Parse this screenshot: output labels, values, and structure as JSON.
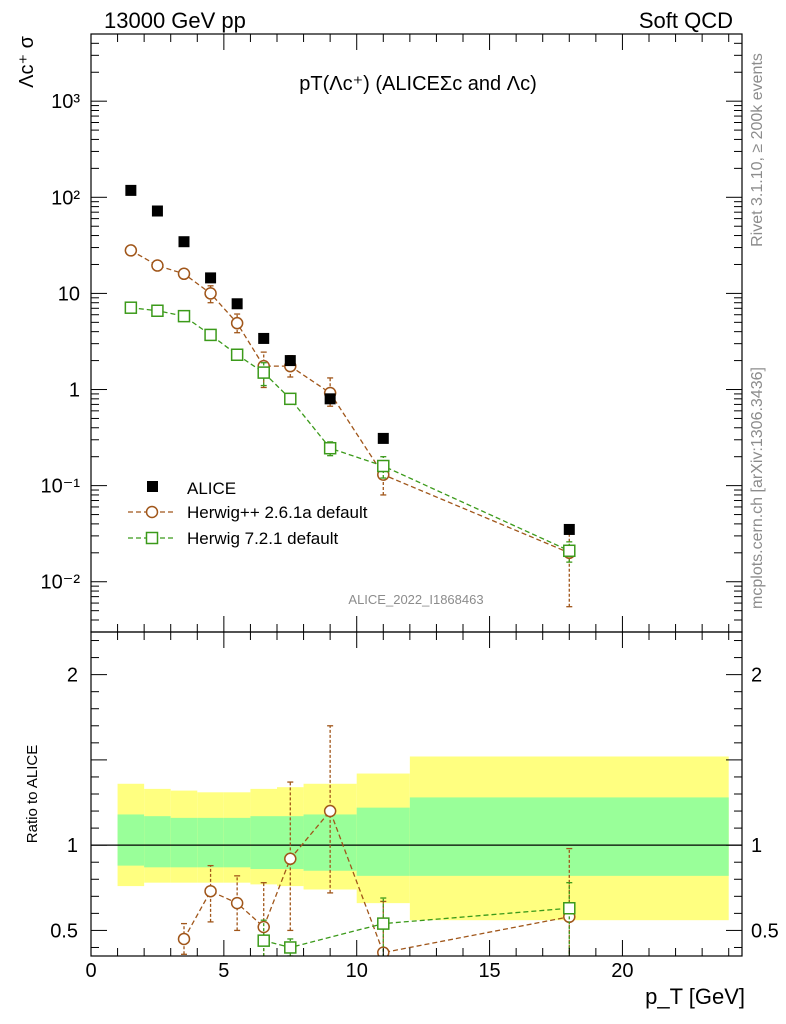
{
  "header": {
    "left": "13000 GeV pp",
    "right": "Soft QCD"
  },
  "side_text": {
    "top": "Rivet 3.1.10, ≥ 200k events",
    "bottom": "mcplots.cern.ch [arXiv:1306.3436]"
  },
  "chart_data": [
    {
      "type": "scatter",
      "title": "pT(Λc⁺) (ALICEΣc and Λc)",
      "xlabel": "p_T [GeV]",
      "ylabel": "Λc⁺ σ",
      "yscale": "log",
      "xlim": [
        0,
        24.5
      ],
      "ylim": [
        0.003,
        5000
      ],
      "watermark": "ALICE_2022_I1868463",
      "ytick_labels": [
        "10⁻²",
        "10⁻¹",
        "1",
        "10",
        "10²",
        "10³"
      ],
      "legend_position": "lower-left",
      "series": [
        {
          "name": "ALICE",
          "x": [
            1.5,
            2.5,
            3.5,
            4.5,
            5.5,
            6.5,
            7.5,
            9,
            11,
            18
          ],
          "y": [
            118,
            72,
            34.5,
            14.5,
            7.8,
            3.4,
            2.0,
            0.8,
            0.31,
            0.035
          ]
        },
        {
          "name": "Herwig++ 2.6.1a default",
          "color": "#a0561a",
          "x": [
            1.5,
            2.5,
            3.5,
            4.5,
            5.5,
            6.5,
            7.5,
            9,
            11,
            18
          ],
          "y": [
            28,
            19.5,
            16,
            10,
            4.9,
            1.75,
            1.75,
            0.92,
            0.13,
            0.02
          ],
          "yerr_low": [
            1.5,
            1,
            1,
            2,
            1,
            0.7,
            0.4,
            0.25,
            0.05,
            0.0145
          ],
          "yerr_high": [
            1.5,
            1,
            1,
            2,
            1.2,
            0.7,
            0.5,
            0.4,
            0.05,
            0.0145
          ]
        },
        {
          "name": "Herwig 7.2.1 default",
          "color": "#3b9a1a",
          "x": [
            1.5,
            2.5,
            3.5,
            4.5,
            5.5,
            6.5,
            7.5,
            9,
            11,
            18
          ],
          "y": [
            7.1,
            6.6,
            5.8,
            3.7,
            2.3,
            1.5,
            0.8,
            0.245,
            0.16,
            0.021
          ],
          "yerr_low": [
            0.3,
            0.3,
            0.3,
            0.2,
            0.15,
            0.4,
            0.08,
            0.04,
            0.04,
            0.005
          ],
          "yerr_high": [
            0.3,
            0.3,
            0.3,
            0.2,
            0.15,
            0.4,
            0.08,
            0.04,
            0.04,
            0.005
          ]
        }
      ]
    },
    {
      "type": "scatter",
      "ylabel": "Ratio to ALICE",
      "xlabel": "p_T [GeV]",
      "xlim": [
        0,
        24.5
      ],
      "ylim": [
        0.35,
        2.25
      ],
      "yticks": [
        0.5,
        1,
        2
      ],
      "ytick_labels": [
        "0.5",
        "1",
        "2"
      ],
      "xticks": [
        0,
        5,
        10,
        15,
        20
      ],
      "xtick_labels": [
        "0",
        "5",
        "10",
        "15",
        "20"
      ],
      "bands": [
        {
          "x0": 1,
          "x1": 2,
          "green": [
            0.88,
            1.18
          ],
          "yellow": [
            0.76,
            1.36
          ]
        },
        {
          "x0": 2,
          "x1": 3,
          "green": [
            0.87,
            1.17
          ],
          "yellow": [
            0.78,
            1.33
          ]
        },
        {
          "x0": 3,
          "x1": 4,
          "green": [
            0.87,
            1.16
          ],
          "yellow": [
            0.78,
            1.32
          ]
        },
        {
          "x0": 4,
          "x1": 5,
          "green": [
            0.87,
            1.16
          ],
          "yellow": [
            0.78,
            1.31
          ]
        },
        {
          "x0": 5,
          "x1": 6,
          "green": [
            0.87,
            1.16
          ],
          "yellow": [
            0.78,
            1.31
          ]
        },
        {
          "x0": 6,
          "x1": 7,
          "green": [
            0.86,
            1.17
          ],
          "yellow": [
            0.77,
            1.33
          ]
        },
        {
          "x0": 7,
          "x1": 8,
          "green": [
            0.86,
            1.17
          ],
          "yellow": [
            0.76,
            1.34
          ]
        },
        {
          "x0": 8,
          "x1": 10,
          "green": [
            0.85,
            1.18
          ],
          "yellow": [
            0.74,
            1.36
          ]
        },
        {
          "x0": 10,
          "x1": 12,
          "green": [
            0.82,
            1.22
          ],
          "yellow": [
            0.66,
            1.42
          ]
        },
        {
          "x0": 12,
          "x1": 24,
          "green": [
            0.82,
            1.28
          ],
          "yellow": [
            0.56,
            1.52
          ]
        }
      ],
      "series": [
        {
          "name": "Herwig++ 2.6.1a default",
          "color": "#a0561a",
          "x": [
            3.5,
            4.5,
            5.5,
            6.5,
            7.5,
            9,
            11,
            18
          ],
          "y": [
            0.45,
            0.73,
            0.66,
            0.52,
            0.92,
            1.2,
            0.37,
            0.58
          ],
          "yerr_low": [
            0.09,
            0.18,
            0.16,
            0.2,
            0.42,
            0.48,
            0.3,
            0.3
          ],
          "yerr_high": [
            0.09,
            0.15,
            0.16,
            0.26,
            0.45,
            0.5,
            0.3,
            0.4
          ]
        },
        {
          "name": "Herwig 7.2.1 default",
          "color": "#3b9a1a",
          "x": [
            6.5,
            7.5,
            11,
            18
          ],
          "y": [
            0.44,
            0.4,
            0.54,
            0.63
          ],
          "yerr_low": [
            0.12,
            0.05,
            0.4,
            0.3
          ],
          "yerr_high": [
            0.12,
            0.05,
            0.15,
            0.15
          ]
        }
      ]
    }
  ]
}
